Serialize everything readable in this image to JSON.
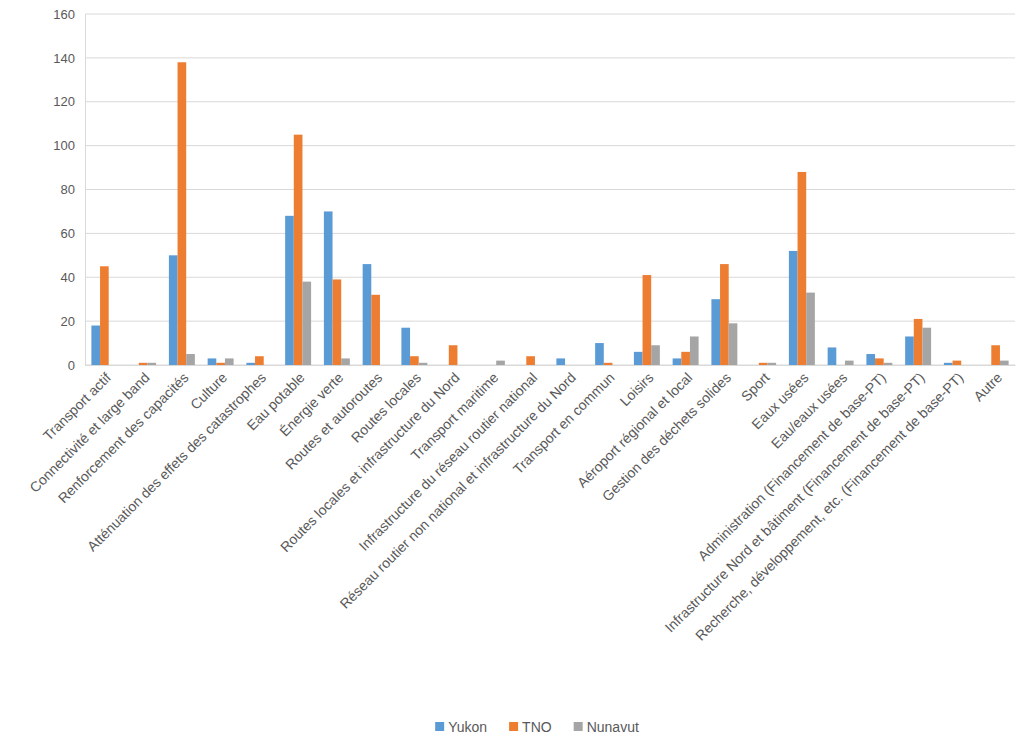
{
  "chart_data": {
    "type": "bar",
    "categories": [
      "Transport actif",
      "Connectivité et large band",
      "Renforcement des capacités",
      "Culture",
      "Atténuation des effets des catastrophes",
      "Eau potable",
      "Énergie verte",
      "Routes et autoroutes",
      "Routes locales",
      "Routes locales et infrastructure du Nord",
      "Transport maritime",
      "Infrastructure du réseau routier national",
      "Réseau routier non national et infrastructure du Nord",
      "Transport en commun",
      "Loisirs",
      "Aéroport régional et local",
      "Gestion des déchets solides",
      "Sport",
      "Eaux usées",
      "Eau/eaux usées",
      "Administration (Financement de base-PT)",
      "Infrastructure Nord et bâtiment (Financement de base-PT)",
      "Recherche, développement, etc.  (Financement de base-PT)",
      "Autre"
    ],
    "series": [
      {
        "name": "Yukon",
        "color": "#5b9bd5",
        "values": [
          18,
          0,
          50,
          3,
          1,
          68,
          70,
          46,
          17,
          0,
          0,
          0,
          3,
          10,
          6,
          3,
          30,
          0,
          52,
          8,
          5,
          13,
          1,
          0
        ]
      },
      {
        "name": "TNO",
        "color": "#ed7d31",
        "values": [
          45,
          1,
          138,
          1,
          4,
          105,
          39,
          32,
          4,
          9,
          0,
          4,
          0,
          1,
          41,
          6,
          46,
          1,
          88,
          0,
          3,
          21,
          2,
          9
        ]
      },
      {
        "name": "Nunavut",
        "color": "#a5a5a5",
        "values": [
          0,
          1,
          5,
          3,
          0,
          38,
          3,
          0,
          1,
          0,
          2,
          0,
          0,
          0,
          9,
          13,
          19,
          1,
          33,
          2,
          1,
          17,
          0,
          2
        ]
      }
    ],
    "ylim": [
      0,
      160
    ],
    "yticks": [
      0,
      20,
      40,
      60,
      80,
      100,
      120,
      140,
      160
    ],
    "grid": true,
    "legend": "bottom"
  }
}
